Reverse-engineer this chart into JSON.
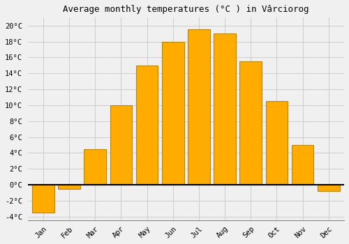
{
  "title": "Average monthly temperatures (°C ) in Vârciorog",
  "months": [
    "Jan",
    "Feb",
    "Mar",
    "Apr",
    "May",
    "Jun",
    "Jul",
    "Aug",
    "Sep",
    "Oct",
    "Nov",
    "Dec"
  ],
  "temperatures": [
    -3.5,
    -0.5,
    4.5,
    10.0,
    15.0,
    18.0,
    19.5,
    19.0,
    15.5,
    10.5,
    5.0,
    -0.8
  ],
  "bar_color": "#FFAB00",
  "bar_edge_color": "#B8860B",
  "ylim": [
    -4.5,
    21
  ],
  "yticks": [
    -4,
    -2,
    0,
    2,
    4,
    6,
    8,
    10,
    12,
    14,
    16,
    18,
    20
  ],
  "ytick_labels": [
    "-4°C",
    "-2°C",
    "0°C",
    "2°C",
    "4°C",
    "6°C",
    "8°C",
    "10°C",
    "12°C",
    "14°C",
    "16°C",
    "18°C",
    "20°C"
  ],
  "background_color": "#f0f0f0",
  "grid_color": "#cccccc",
  "title_fontsize": 9,
  "tick_fontsize": 7.5,
  "zero_line_color": "#000000",
  "bar_width": 0.85
}
